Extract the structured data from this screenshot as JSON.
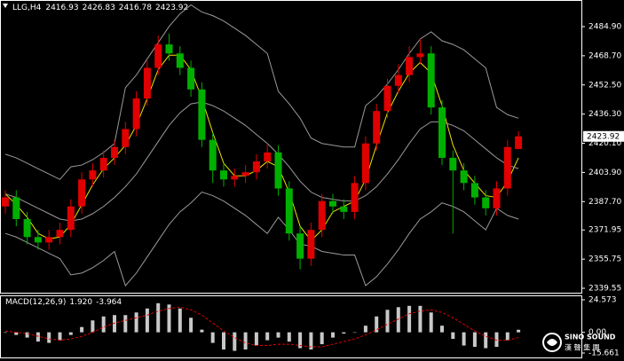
{
  "chart_data": {
    "type": "candlestick",
    "symbol": "LLG,H4",
    "open": [
      2385,
      2390,
      2378,
      2368,
      2365,
      2368,
      2372,
      2385,
      2400,
      2405,
      2412,
      2418,
      2428,
      2445,
      2462,
      2475,
      2470,
      2462,
      2450,
      2422,
      2405,
      2400,
      2402,
      2404,
      2410,
      2415,
      2395,
      2370,
      2356,
      2372,
      2388,
      2385,
      2382,
      2398,
      2420,
      2438,
      2452,
      2458,
      2468,
      2470,
      2440,
      2412,
      2405,
      2398,
      2390,
      2384,
      2395,
      2416.93
    ],
    "high": [
      2394,
      2394,
      2382,
      2372,
      2372,
      2376,
      2389,
      2404,
      2409,
      2416,
      2422,
      2432,
      2449,
      2466,
      2480,
      2481,
      2474,
      2466,
      2454,
      2426,
      2409,
      2406,
      2408,
      2414,
      2420,
      2419,
      2399,
      2374,
      2376,
      2392,
      2392,
      2389,
      2402,
      2424,
      2442,
      2456,
      2464,
      2474,
      2478,
      2474,
      2444,
      2416,
      2409,
      2402,
      2394,
      2399,
      2422,
      2426.83
    ],
    "low": [
      2381,
      2374,
      2364,
      2361,
      2361,
      2364,
      2368,
      2381,
      2396,
      2401,
      2408,
      2414,
      2424,
      2441,
      2458,
      2466,
      2458,
      2446,
      2418,
      2398,
      2396,
      2396,
      2398,
      2400,
      2406,
      2391,
      2366,
      2350,
      2352,
      2368,
      2381,
      2378,
      2378,
      2394,
      2416,
      2434,
      2448,
      2454,
      2464,
      2436,
      2408,
      2370,
      2394,
      2386,
      2380,
      2380,
      2391,
      2416.78
    ],
    "close": [
      2390,
      2378,
      2368,
      2365,
      2368,
      2372,
      2385,
      2400,
      2405,
      2412,
      2418,
      2428,
      2445,
      2462,
      2475,
      2470,
      2462,
      2450,
      2422,
      2405,
      2400,
      2402,
      2404,
      2410,
      2415,
      2395,
      2370,
      2356,
      2372,
      2388,
      2385,
      2382,
      2398,
      2420,
      2438,
      2452,
      2458,
      2468,
      2470,
      2440,
      2412,
      2405,
      2398,
      2390,
      2384,
      2395,
      2418,
      2423.92
    ],
    "up_color": "#e00000",
    "down_color": "#00b000",
    "series": [
      {
        "color": "#f0e000",
        "values": [
          2392,
          2386,
          2379,
          2370,
          2367,
          2368,
          2375,
          2386,
          2397,
          2406,
          2412,
          2419,
          2430,
          2445,
          2461,
          2469,
          2469,
          2461,
          2445,
          2426,
          2409,
          2402,
          2402,
          2405,
          2410,
          2407,
          2393,
          2374,
          2366,
          2372,
          2382,
          2385,
          2388,
          2400,
          2419,
          2437,
          2449,
          2459,
          2465,
          2459,
          2441,
          2419,
          2405,
          2398,
          2391,
          2390,
          2399,
          2412
        ]
      },
      {
        "color": "#9a9a9a",
        "values": [
          2414,
          2412,
          2409,
          2406,
          2403,
          2400,
          2407,
          2408,
          2411,
          2415,
          2420,
          2451,
          2458,
          2467,
          2476,
          2485,
          2492,
          2497,
          2493,
          2491,
          2488,
          2484,
          2480,
          2475,
          2470,
          2449,
          2442,
          2434,
          2423,
          2420,
          2419,
          2418,
          2418,
          2441,
          2446,
          2453,
          2461,
          2470,
          2478,
          2482,
          2477,
          2475,
          2472,
          2467,
          2462,
          2440,
          2436,
          2434
        ]
      },
      {
        "color": "#9a9a9a",
        "values": [
          2392,
          2390,
          2387,
          2384,
          2381,
          2378,
          2377,
          2378,
          2381,
          2385,
          2390,
          2396,
          2403,
          2412,
          2421,
          2430,
          2437,
          2442,
          2443,
          2441,
          2438,
          2434,
          2430,
          2425,
          2420,
          2414,
          2407,
          2399,
          2393,
          2390,
          2389,
          2388,
          2388,
          2391,
          2396,
          2403,
          2411,
          2420,
          2428,
          2432,
          2432,
          2430,
          2427,
          2422,
          2417,
          2412,
          2408,
          2406
        ]
      },
      {
        "color": "#9a9a9a",
        "values": [
          2370,
          2368,
          2365,
          2362,
          2359,
          2356,
          2347,
          2348,
          2351,
          2355,
          2360,
          2341,
          2348,
          2357,
          2366,
          2375,
          2382,
          2387,
          2393,
          2391,
          2388,
          2384,
          2380,
          2375,
          2370,
          2379,
          2372,
          2364,
          2363,
          2360,
          2359,
          2358,
          2358,
          2341,
          2346,
          2353,
          2361,
          2370,
          2378,
          2382,
          2387,
          2385,
          2382,
          2377,
          2372,
          2384,
          2380,
          2378
        ]
      }
    ],
    "ylim": [
      2337.09,
      2499.68
    ],
    "yticks": [
      {
        "value": 2484.9,
        "label": "2484.90"
      },
      {
        "value": 2468.7,
        "label": "2468.70"
      },
      {
        "value": 2452.5,
        "label": "2452.50"
      },
      {
        "value": 2436.3,
        "label": "2436.30"
      },
      {
        "value": 2420.1,
        "label": "2420.10"
      },
      {
        "value": 2403.9,
        "label": "2403.90"
      },
      {
        "value": 2387.7,
        "label": "2387.70"
      },
      2371.95,
      2355.75,
      {
        "value": 2339.55,
        "label": "2339.55"
      }
    ],
    "macd": {
      "title": "MACD(12,26,9)",
      "hist_color": "#c8c8c8",
      "signal_color": "#e00000",
      "values": [
        0,
        -2,
        -4,
        -7,
        -8,
        -6,
        -2,
        4,
        9,
        12,
        13,
        13,
        15,
        18,
        22,
        21,
        18,
        11,
        2,
        -8,
        -13,
        -14,
        -13,
        -10,
        -6,
        -4,
        -7,
        -12,
        -13,
        -9,
        -4,
        -1,
        0,
        5,
        12,
        17,
        19,
        20,
        20,
        15,
        5,
        -5,
        -10,
        -11,
        -12,
        -11,
        -6,
        1.92
      ],
      "value_labels": {
        "47": "1.920"
      },
      "signal": [
        1,
        0,
        -1,
        -3,
        -5,
        -6,
        -5,
        -3,
        0,
        4,
        7,
        9,
        11,
        13,
        16,
        18,
        19,
        17,
        13,
        7,
        1,
        -4,
        -8,
        -10,
        -10,
        -9,
        -9,
        -10,
        -11,
        -11,
        -9,
        -7,
        -5,
        -2,
        2,
        6,
        10,
        14,
        16,
        17,
        15,
        11,
        6,
        1,
        -3,
        -6,
        -6,
        -3.964
      ],
      "ylim": [
        -15.661,
        24.573
      ],
      "yticks": [
        24.573,
        {
          "value": 0,
          "label": "0.00"
        },
        -15.661
      ]
    },
    "watermark": {
      "brand": "SINO SOUND",
      "chinese": "漢 聲 集 團"
    }
  }
}
